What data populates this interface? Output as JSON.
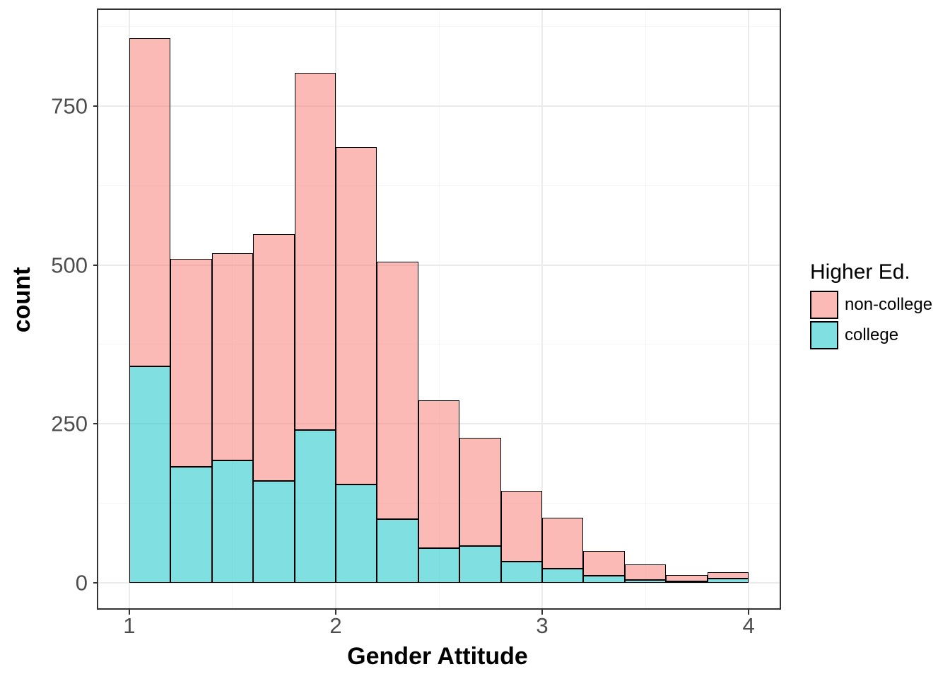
{
  "figure": {
    "x_axis_title": "Gender Attitude",
    "y_axis_title": "count",
    "x_tick_labels": [
      "1",
      "2",
      "3",
      "4"
    ],
    "x_tick_values": [
      1,
      2,
      3,
      4
    ],
    "x_minor_values": [
      1.5,
      2.5,
      3.5
    ],
    "y_tick_labels": [
      "0",
      "250",
      "500",
      "750"
    ],
    "y_tick_values": [
      0,
      250,
      500,
      750
    ],
    "y_minor_values": [
      125,
      375,
      625,
      875
    ]
  },
  "legend": {
    "title": "Higher Ed.",
    "items": [
      {
        "label": "non-college",
        "color": "rgba(248,118,109,0.5)"
      },
      {
        "label": "college",
        "color": "rgba(0,191,196,0.5)"
      }
    ]
  },
  "colors": {
    "non_college_fill": "rgba(248,118,109,0.5)",
    "college_fill": "rgba(0,191,196,0.5)",
    "bar_outline": "#000000",
    "panel_border": "#333333",
    "tick_text": "#4d4d4d",
    "grid_major": "#ebebeb",
    "grid_minor": "#f5f5f5"
  },
  "chart_data": {
    "type": "bar",
    "subtype": "stacked-histogram",
    "title": "",
    "xlabel": "Gender Attitude",
    "ylabel": "count",
    "bin_start": 1.0,
    "bin_width": 0.2,
    "bin_edges": [
      1.0,
      1.2,
      1.4,
      1.6,
      1.8,
      2.0,
      2.2,
      2.4,
      2.6,
      2.8,
      3.0,
      3.2,
      3.4,
      3.6,
      3.8,
      4.0
    ],
    "stack_order_bottom_to_top": [
      "college",
      "non-college"
    ],
    "series": [
      {
        "name": "college",
        "color": "rgba(0,191,196,0.5)",
        "values": [
          340,
          182,
          193,
          160,
          240,
          155,
          100,
          55,
          58,
          33,
          22,
          11,
          5,
          2,
          7
        ]
      },
      {
        "name": "non-college",
        "color": "rgba(248,118,109,0.5)",
        "values": [
          517,
          328,
          325,
          388,
          562,
          530,
          405,
          232,
          170,
          112,
          80,
          39,
          24,
          10,
          10
        ]
      }
    ],
    "totals": [
      857,
      510,
      518,
      548,
      802,
      685,
      505,
      287,
      228,
      145,
      102,
      50,
      29,
      12,
      17
    ],
    "xlim": [
      0.85,
      4.15
    ],
    "ylim": [
      -40,
      901
    ],
    "grid": true,
    "legend_position": "right",
    "legend_title": "Higher Ed."
  }
}
